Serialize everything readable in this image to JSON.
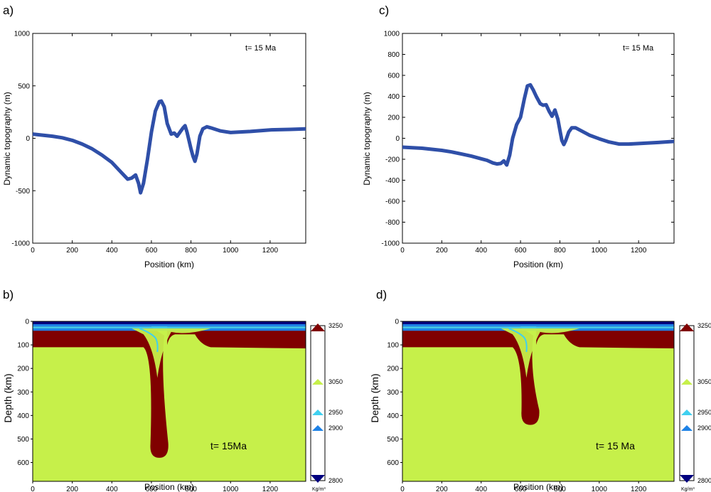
{
  "chart_data": [
    {
      "panel": "a)",
      "type": "line",
      "annotation": "t= 15 Ma",
      "xlabel": "Position (km)",
      "ylabel": "Dynamic topography (m)",
      "xlim": [
        0,
        1380
      ],
      "ylim": [
        -1000,
        1000
      ],
      "xticks": [
        0,
        200,
        400,
        600,
        800,
        1000,
        1200
      ],
      "yticks": [
        1000,
        500,
        0,
        -500,
        -1000
      ],
      "color": "#2f4fa8",
      "series": [
        {
          "x": [
            0,
            50,
            100,
            150,
            200,
            250,
            300,
            350,
            400,
            450,
            480,
            500,
            520,
            535,
            545,
            560,
            580,
            600,
            620,
            640,
            650,
            665,
            680,
            700,
            715,
            730,
            745,
            760,
            770,
            780,
            790,
            800,
            810,
            820,
            830,
            845,
            860,
            880,
            900,
            950,
            1000,
            1100,
            1200,
            1300,
            1380
          ],
          "y": [
            40,
            30,
            20,
            5,
            -20,
            -55,
            -100,
            -160,
            -230,
            -330,
            -390,
            -380,
            -350,
            -430,
            -520,
            -430,
            -200,
            60,
            260,
            350,
            355,
            300,
            140,
            40,
            50,
            20,
            60,
            100,
            120,
            60,
            -20,
            -100,
            -170,
            -220,
            -150,
            20,
            90,
            110,
            100,
            70,
            55,
            65,
            80,
            85,
            90
          ]
        }
      ]
    },
    {
      "panel": "c)",
      "type": "line",
      "annotation": "t= 15 Ma",
      "xlabel": "Position (km)",
      "ylabel": "Dynamic topography (m)",
      "xlim": [
        0,
        1380
      ],
      "ylim": [
        -1000,
        1000
      ],
      "xticks": [
        0,
        200,
        400,
        600,
        800,
        1000,
        1200
      ],
      "yticks": [
        1000,
        800,
        600,
        400,
        200,
        0,
        -200,
        -400,
        -600,
        -800,
        -1000
      ],
      "color": "#2f4fa8",
      "series": [
        {
          "x": [
            0,
            50,
            100,
            150,
            200,
            250,
            300,
            350,
            400,
            430,
            460,
            480,
            500,
            515,
            530,
            545,
            560,
            580,
            600,
            620,
            635,
            650,
            665,
            680,
            700,
            715,
            730,
            745,
            760,
            775,
            790,
            800,
            810,
            820,
            830,
            845,
            860,
            880,
            900,
            950,
            1000,
            1050,
            1100,
            1150,
            1200,
            1300,
            1380
          ],
          "y": [
            -85,
            -90,
            -95,
            -105,
            -115,
            -130,
            -150,
            -170,
            -195,
            -210,
            -235,
            -245,
            -240,
            -215,
            -255,
            -160,
            0,
            130,
            200,
            380,
            500,
            510,
            460,
            400,
            330,
            315,
            320,
            260,
            210,
            270,
            180,
            80,
            -20,
            -60,
            -20,
            60,
            100,
            100,
            80,
            30,
            -5,
            -35,
            -55,
            -55,
            -50,
            -40,
            -30
          ]
        }
      ]
    },
    {
      "panel": "b)",
      "type": "heatmap",
      "annotation": "t= 15Ma",
      "xlabel": "Position (km)",
      "ylabel": "Depth (km)",
      "xlim": [
        0,
        1380
      ],
      "ylim": [
        0,
        680
      ],
      "xticks": [
        0,
        200,
        400,
        600,
        800,
        1000,
        1200
      ],
      "yticks": [
        0,
        100,
        200,
        300,
        400,
        500,
        600
      ],
      "colorbar": {
        "unit": "Kg/m³",
        "ticks": [
          "3250",
          "3050",
          "2950",
          "2900",
          "2800"
        ],
        "colors": [
          "#800000",
          "#c6f04a",
          "#3fd0f0",
          "#1e82e6",
          "#00007e"
        ]
      },
      "slab": {
        "hinge_x": 620,
        "tip_x": 640,
        "tip_depth": 580,
        "lithosphere_base_depth": 110
      }
    },
    {
      "panel": "d)",
      "type": "heatmap",
      "annotation": "t= 15 Ma",
      "xlabel": "Position (km)",
      "ylabel": "Depth (km)",
      "xlim": [
        0,
        1380
      ],
      "ylim": [
        0,
        680
      ],
      "xticks": [
        0,
        200,
        400,
        600,
        800,
        1000,
        1200
      ],
      "yticks": [
        0,
        100,
        200,
        300,
        400,
        500,
        600
      ],
      "colorbar": {
        "unit": "Kg/m³",
        "ticks": [
          "3250",
          "3050",
          "2950",
          "2900",
          "2800"
        ],
        "colors": [
          "#800000",
          "#c6f04a",
          "#3fd0f0",
          "#1e82e6",
          "#00007e"
        ]
      },
      "slab": {
        "hinge_x": 620,
        "tip_x": 650,
        "tip_depth": 440,
        "lithosphere_base_depth": 110
      }
    }
  ]
}
